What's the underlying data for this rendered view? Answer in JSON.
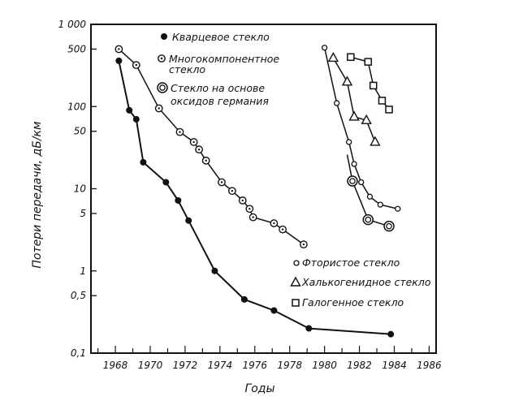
{
  "chart_data": {
    "type": "line",
    "xlabel": "Годы",
    "ylabel": "Потери передачи, дБ/км",
    "xlim": [
      1966.6,
      1986.4
    ],
    "ylim": [
      0.1,
      1000
    ],
    "yscale": "log",
    "grid": false,
    "x_ticks": [
      1968,
      1970,
      1972,
      1974,
      1976,
      1978,
      1980,
      1982,
      1984,
      1986
    ],
    "x_tick_labels": [
      "1968",
      "1970",
      "1972",
      "1974",
      "1976",
      "1978",
      "1980",
      "1982",
      "1984",
      "1986"
    ],
    "y_ticks": [
      1000,
      500,
      100,
      50,
      10,
      5,
      1,
      0.5,
      0.1
    ],
    "y_tick_labels": [
      "1 000",
      "500",
      "100",
      "50",
      "10",
      "5",
      "1",
      "0,5",
      "0,1"
    ],
    "legend_placement": "top-left and bottom-right",
    "series": [
      {
        "name": "Кварцевое стекло",
        "marker": "filled-circle",
        "x": [
          1968.2,
          1968.8,
          1969.2,
          1969.6,
          1970.9,
          1971.6,
          1972.2,
          1973.7,
          1975.4,
          1977.1,
          1979.1,
          1983.8
        ],
        "y": [
          360,
          90,
          70,
          21,
          12,
          7.2,
          4.1,
          1.0,
          0.45,
          0.33,
          0.2,
          0.17
        ]
      },
      {
        "name": "Многокомпонентное стекло",
        "marker": "dotted-circle",
        "x": [
          1968.2,
          1969.2,
          1970.5,
          1971.7,
          1972.5,
          1972.8,
          1973.2,
          1974.1,
          1974.7,
          1975.3,
          1975.7,
          1975.9,
          1977.1,
          1977.6,
          1978.8
        ],
        "y": [
          500,
          320,
          95,
          49,
          37,
          30,
          22,
          12,
          9.4,
          7.2,
          5.7,
          4.5,
          3.8,
          3.2,
          2.1
        ]
      },
      {
        "name": "Стекло на основе оксидов германия",
        "marker": "double-circle",
        "x": [
          1981.6,
          1982.5,
          1983.7
        ],
        "y": [
          12.4,
          4.2,
          3.5
        ]
      },
      {
        "name": "Фтористое стекло",
        "marker": "open-circle",
        "x": [
          1980.0,
          1980.7,
          1981.4,
          1981.7,
          1982.1,
          1982.6,
          1983.2,
          1984.2
        ],
        "y": [
          520,
          110,
          37,
          20,
          12,
          8,
          6.4,
          5.7
        ]
      },
      {
        "name": "Халькогенидное стекло",
        "marker": "triangle",
        "x": [
          1980.5,
          1981.3,
          1981.7,
          1982.4,
          1982.9
        ],
        "y": [
          390,
          200,
          75,
          68,
          37
        ]
      },
      {
        "name": "Галогенное стекло",
        "marker": "square",
        "x": [
          1981.5,
          1982.5,
          1982.8,
          1983.3,
          1983.7
        ],
        "y": [
          400,
          350,
          180,
          118,
          92
        ]
      }
    ]
  }
}
